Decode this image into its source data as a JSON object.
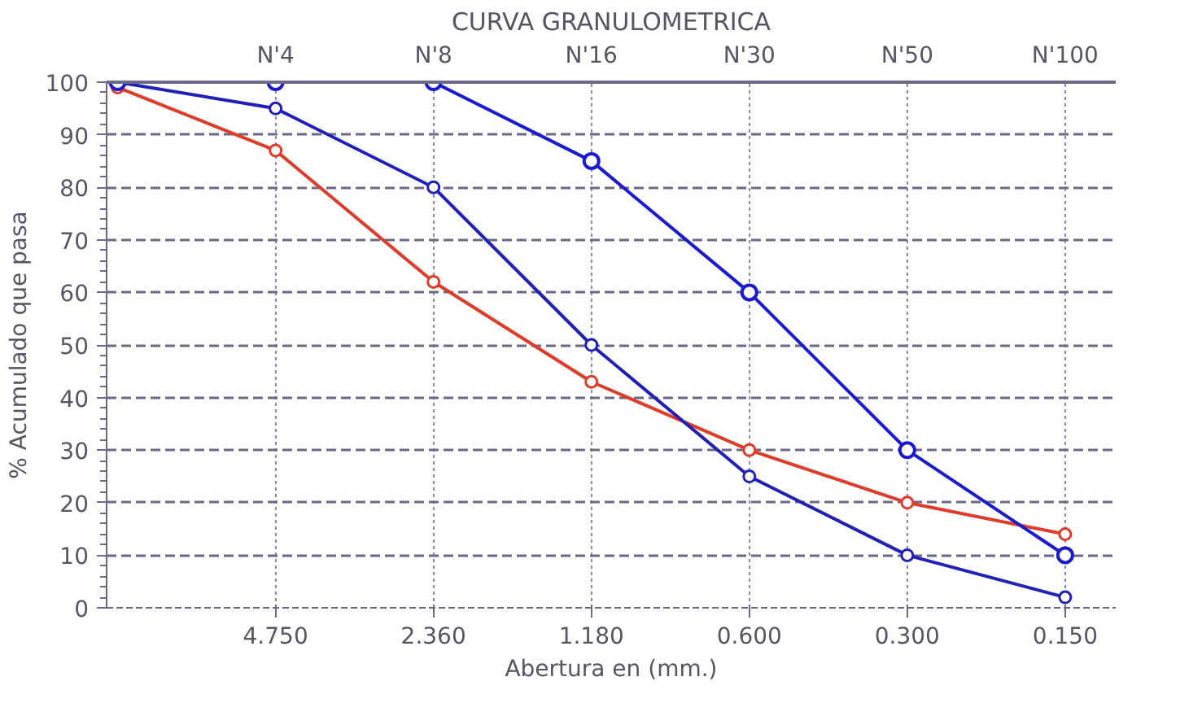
{
  "chart_data": {
    "type": "line",
    "title": "CURVA GRANULOMETRICA",
    "xlabel": "Abertura en (mm.)",
    "ylabel": "% Acumulado que pasa",
    "categories": [
      null,
      "4.750",
      "2.360",
      "1.180",
      "0.600",
      "0.300",
      "0.150"
    ],
    "annotations": [
      "N'4",
      "N'8",
      "N'16",
      "N'30",
      "N'50",
      "N'100"
    ],
    "ylim": [
      0,
      100
    ],
    "yticks": [
      0,
      10,
      20,
      30,
      40,
      50,
      60,
      70,
      80,
      90,
      100
    ],
    "grid": true,
    "marker": "circle",
    "line_style": "solid",
    "series": [
      {
        "color": "#1a1ad0",
        "values": [
          100,
          100,
          100,
          85,
          60,
          30,
          10
        ]
      },
      {
        "color": "#2020b8",
        "values": [
          100,
          95,
          80,
          50,
          25,
          10,
          2
        ]
      },
      {
        "color": "#e03a28",
        "values": [
          99,
          87,
          62,
          43,
          30,
          20,
          14
        ]
      }
    ]
  }
}
